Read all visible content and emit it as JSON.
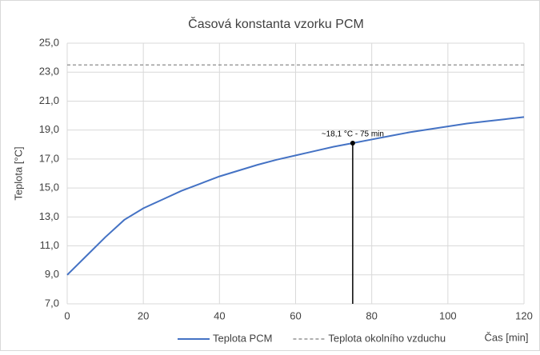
{
  "chart_data": {
    "type": "line",
    "title": "Časová konstanta vzorku PCM",
    "x_label": "Čas [min]",
    "y_label": "Teplota [°C]",
    "x": [
      0,
      5,
      10,
      15,
      20,
      25,
      30,
      35,
      40,
      45,
      50,
      55,
      60,
      65,
      70,
      75,
      80,
      85,
      90,
      95,
      100,
      105,
      110,
      115,
      120
    ],
    "series": [
      {
        "name": "Teplota PCM",
        "color": "#4472c4",
        "dash": false,
        "values": [
          9.0,
          10.3,
          11.6,
          12.8,
          13.6,
          14.2,
          14.8,
          15.3,
          15.8,
          16.2,
          16.6,
          16.95,
          17.25,
          17.55,
          17.85,
          18.1,
          18.35,
          18.6,
          18.85,
          19.05,
          19.25,
          19.45,
          19.6,
          19.75,
          19.9
        ]
      },
      {
        "name": "Teplota okolního vzduchu",
        "color": "#7f7f7f",
        "dash": true,
        "values": [
          23.5,
          23.5,
          23.5,
          23.5,
          23.5,
          23.5,
          23.5,
          23.5,
          23.5,
          23.5,
          23.5,
          23.5,
          23.5,
          23.5,
          23.5,
          23.5,
          23.5,
          23.5,
          23.5,
          23.5,
          23.5,
          23.5,
          23.5,
          23.5,
          23.5
        ]
      }
    ],
    "annotation": {
      "text": "~18,1 °C - 75 min",
      "x": 75,
      "y": 18.1
    },
    "xlim": [
      0,
      120
    ],
    "xticks": [
      0,
      20,
      40,
      60,
      80,
      100,
      120
    ],
    "ylim": [
      7,
      25
    ],
    "yticks": [
      {
        "value": 7,
        "label": "7,0"
      },
      {
        "value": 9,
        "label": "9,0"
      },
      {
        "value": 11,
        "label": "11,0"
      },
      {
        "value": 13,
        "label": "13,0"
      },
      {
        "value": 15,
        "label": "15,0"
      },
      {
        "value": 17,
        "label": "17,0"
      },
      {
        "value": 19,
        "label": "19,0"
      },
      {
        "value": 21,
        "label": "21,0"
      },
      {
        "value": 23,
        "label": "23,0"
      },
      {
        "value": 25,
        "label": "25,0"
      }
    ],
    "grid": true
  }
}
